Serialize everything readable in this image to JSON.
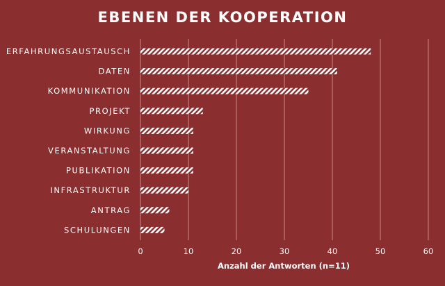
{
  "chart_data": {
    "type": "bar",
    "orientation": "horizontal",
    "title": "EBENEN DER KOOPERATION",
    "xlabel": "Anzahl der Antworten (n=11)",
    "ylabel": "",
    "categories": [
      "ERFAHRUNGSAUSTAUSCH",
      "DATEN",
      "KOMMUNIKATION",
      "PROJEKT",
      "WIRKUNG",
      "VERANSTALTUNG",
      "PUBLIKATION",
      "INFRASTRUKTUR",
      "ANTRAG",
      "SCHULUNGEN"
    ],
    "values": [
      48,
      41,
      35,
      13,
      11,
      11,
      11,
      10,
      6,
      5
    ],
    "xlim": [
      0,
      60
    ],
    "xticks": [
      0,
      10,
      20,
      30,
      40,
      50,
      60
    ],
    "grid": true,
    "bar_pattern": "diagonal-hatch",
    "colors": {
      "background": "#8b2e2f",
      "bar": "#ffffff",
      "text": "#ffffff",
      "grid": "#c98a8a"
    }
  }
}
